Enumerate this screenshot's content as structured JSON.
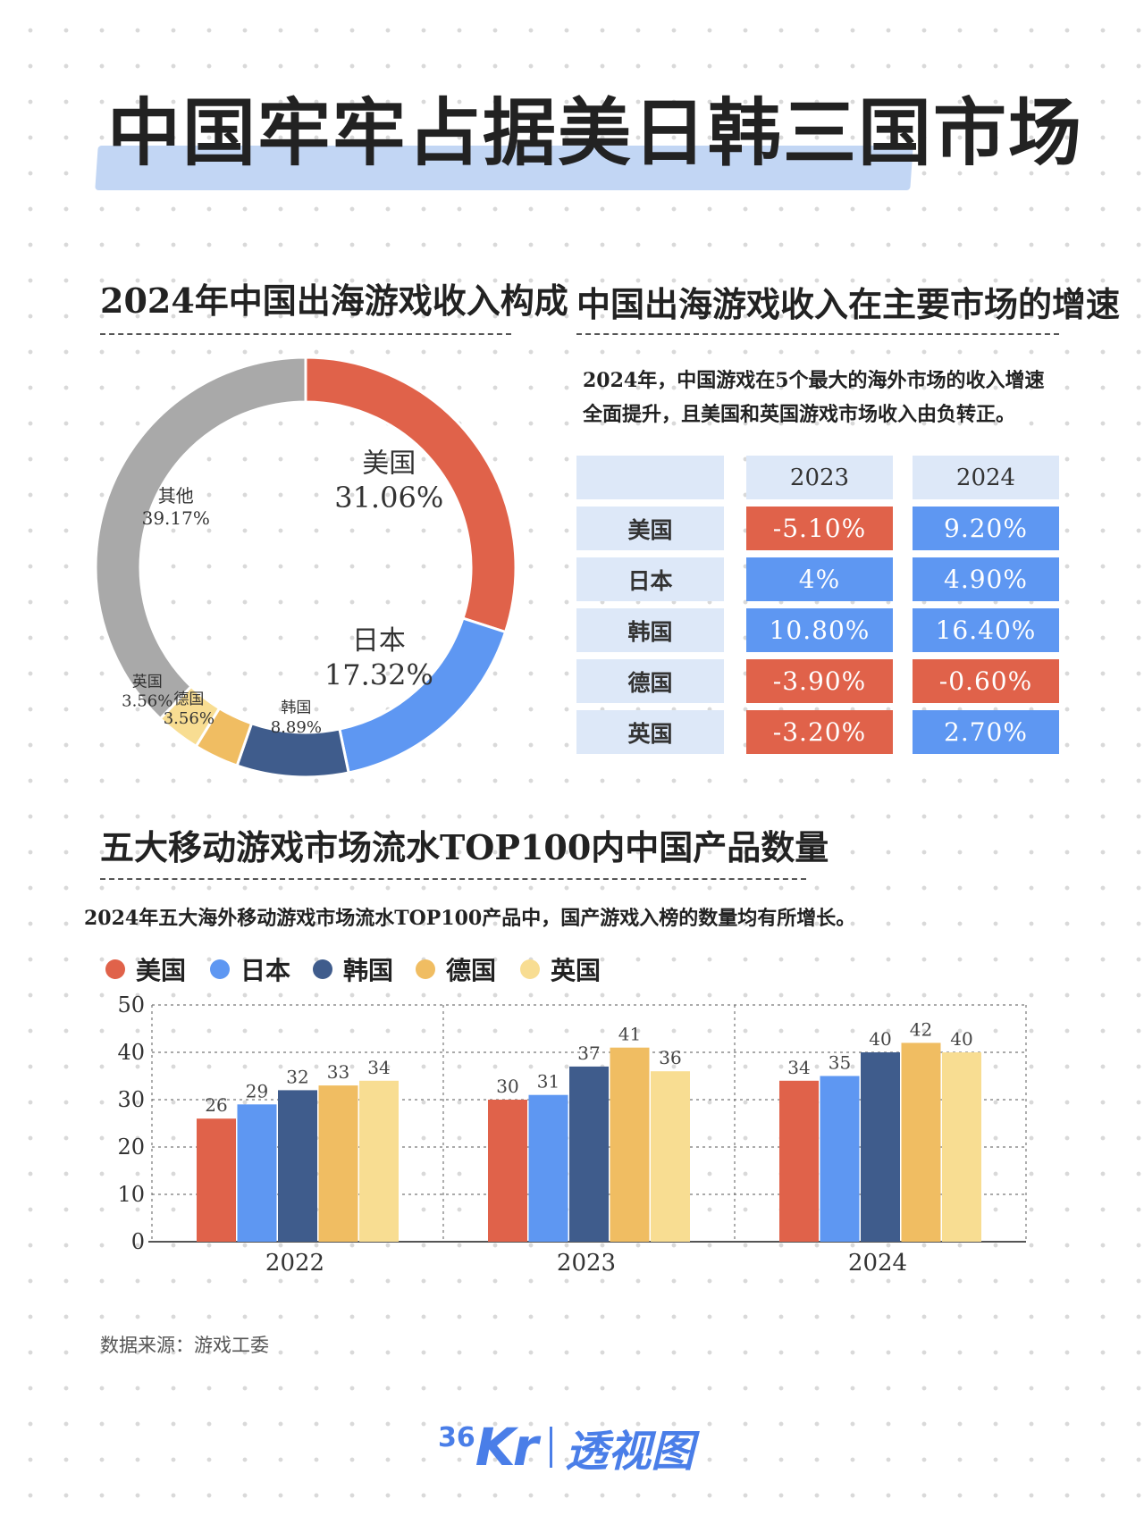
{
  "page": {
    "title": "中国牢牢占据美日韩三国市场",
    "source": "数据来源：游戏工委",
    "logo": {
      "num": "36",
      "kr": "Kr",
      "text": "透视图"
    }
  },
  "colors": {
    "usa": "#e0624a",
    "japan": "#5e97f2",
    "korea": "#3f5c8c",
    "germany": "#f0bd62",
    "uk": "#f8dd92",
    "other": "#a9a9a9",
    "title_highlight": "#c2d6f4",
    "table_bg": "#dde8f8"
  },
  "donut": {
    "title": "2024年中国出海游戏收入构成"
  },
  "growth": {
    "title": "中国出海游戏收入在主要市场的增速",
    "desc_line1": "2024年，中国游戏在5个最大的海外市场的收入增速",
    "desc_line2": "全面提升，且美国和英国游戏市场收入由负转正。"
  },
  "bars": {
    "title": "五大移动游戏市场流水TOP100内中国产品数量",
    "desc": "2024年五大海外移动游戏市场流水TOP100产品中，国产游戏入榜的数量均有所增长。"
  },
  "chart_data": [
    {
      "type": "pie",
      "donut": true,
      "title": "2024年中国出海游戏收入构成",
      "slices": [
        {
          "label": "美国",
          "value": 31.06,
          "display": "31.06%",
          "color": "#e0624a"
        },
        {
          "label": "日本",
          "value": 17.32,
          "display": "17.32%",
          "color": "#5e97f2"
        },
        {
          "label": "韩国",
          "value": 8.89,
          "display": "8.89%",
          "color": "#3f5c8c"
        },
        {
          "label": "德国",
          "value": 3.56,
          "display": "3.56%",
          "color": "#f0bd62"
        },
        {
          "label": "英国",
          "value": 3.56,
          "display": "3.56%",
          "color": "#f8dd92"
        },
        {
          "label": "其他",
          "value": 39.17,
          "display": "39.17%",
          "color": "#a9a9a9"
        }
      ]
    },
    {
      "type": "table",
      "title": "中国出海游戏收入在主要市场的增速",
      "columns": [
        "2023",
        "2024"
      ],
      "rows": [
        {
          "label": "美国",
          "values": [
            "-5.10%",
            "9.20%"
          ],
          "signs": [
            "neg",
            "pos"
          ]
        },
        {
          "label": "日本",
          "values": [
            "4%",
            "4.90%"
          ],
          "signs": [
            "pos",
            "pos"
          ]
        },
        {
          "label": "韩国",
          "values": [
            "10.80%",
            "16.40%"
          ],
          "signs": [
            "pos",
            "pos"
          ]
        },
        {
          "label": "德国",
          "values": [
            "-3.90%",
            "-0.60%"
          ],
          "signs": [
            "neg",
            "neg"
          ]
        },
        {
          "label": "英国",
          "values": [
            "-3.20%",
            "2.70%"
          ],
          "signs": [
            "neg",
            "pos"
          ]
        }
      ]
    },
    {
      "type": "bar",
      "title": "五大移动游戏市场流水TOP100内中国产品数量",
      "categories": [
        "2022",
        "2023",
        "2024"
      ],
      "series": [
        {
          "name": "美国",
          "values": [
            26,
            30,
            34
          ],
          "color": "#e0624a"
        },
        {
          "name": "日本",
          "values": [
            29,
            31,
            35
          ],
          "color": "#5e97f2"
        },
        {
          "name": "韩国",
          "values": [
            32,
            37,
            40
          ],
          "color": "#3f5c8c"
        },
        {
          "name": "德国",
          "values": [
            33,
            41,
            42
          ],
          "color": "#f0bd62"
        },
        {
          "name": "英国",
          "values": [
            34,
            36,
            40
          ],
          "color": "#f8dd92"
        }
      ],
      "ylim": [
        0,
        50
      ],
      "yticks": [
        0,
        10,
        20,
        30,
        40,
        50
      ],
      "legend": "top-left",
      "grid": true
    }
  ]
}
